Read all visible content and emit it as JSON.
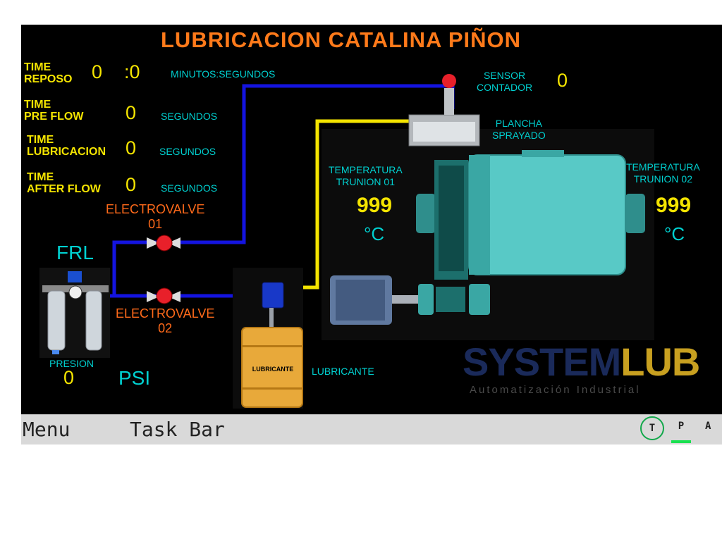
{
  "title": "LUBRICACION CATALINA PIÑON",
  "timers": {
    "reposo": {
      "label": "TIME\nREPOSO",
      "minutes": "0",
      "seconds": ":0",
      "unit": "MINUTOS:SEGUNDOS"
    },
    "pre_flow": {
      "label": "TIME\nPRE FLOW",
      "value": "0",
      "unit": "SEGUNDOS"
    },
    "lubricacion": {
      "label": "TIME\nLUBRICACION",
      "value": "0",
      "unit": "SEGUNDOS"
    },
    "after_flow": {
      "label": "TIME\nAFTER FLOW",
      "value": "0",
      "unit": "SEGUNDOS"
    }
  },
  "sensor": {
    "label": "SENSOR\nCONTADOR",
    "value": "0"
  },
  "plancha": {
    "label": "PLANCHA\nSPRAYADO"
  },
  "trunion_01": {
    "label": "TEMPERATURA\nTRUNION 01",
    "value": "999",
    "unit": "°C"
  },
  "trunion_02": {
    "label": "TEMPERATURA\nTRUNION 02",
    "value": "999",
    "unit": "°C"
  },
  "valve_01": {
    "label": "ELECTROVALVE\n01"
  },
  "valve_02": {
    "label": "ELECTROVALVE\n02"
  },
  "frl": {
    "label": "FRL"
  },
  "presion": {
    "label": "PRESION",
    "value": "0",
    "unit": "PSI"
  },
  "lubricante": {
    "drum_label": "LUBRICANTE",
    "label": "LUBRICANTE"
  },
  "brand": {
    "name_a": "SYSTEM",
    "name_b": "LUB",
    "tagline": "Automatización Industrial"
  },
  "taskbar": {
    "menu": "Menu",
    "task_bar": "Task Bar",
    "t": "T",
    "p": "P",
    "a": "A"
  },
  "colors": {
    "pipe_air": "#1414e0",
    "pipe_lube": "#f4e400",
    "valve": "#e8202a",
    "title": "#ff7a1a",
    "brand_a": "#1a2a5a",
    "brand_b": "#c8a020"
  }
}
